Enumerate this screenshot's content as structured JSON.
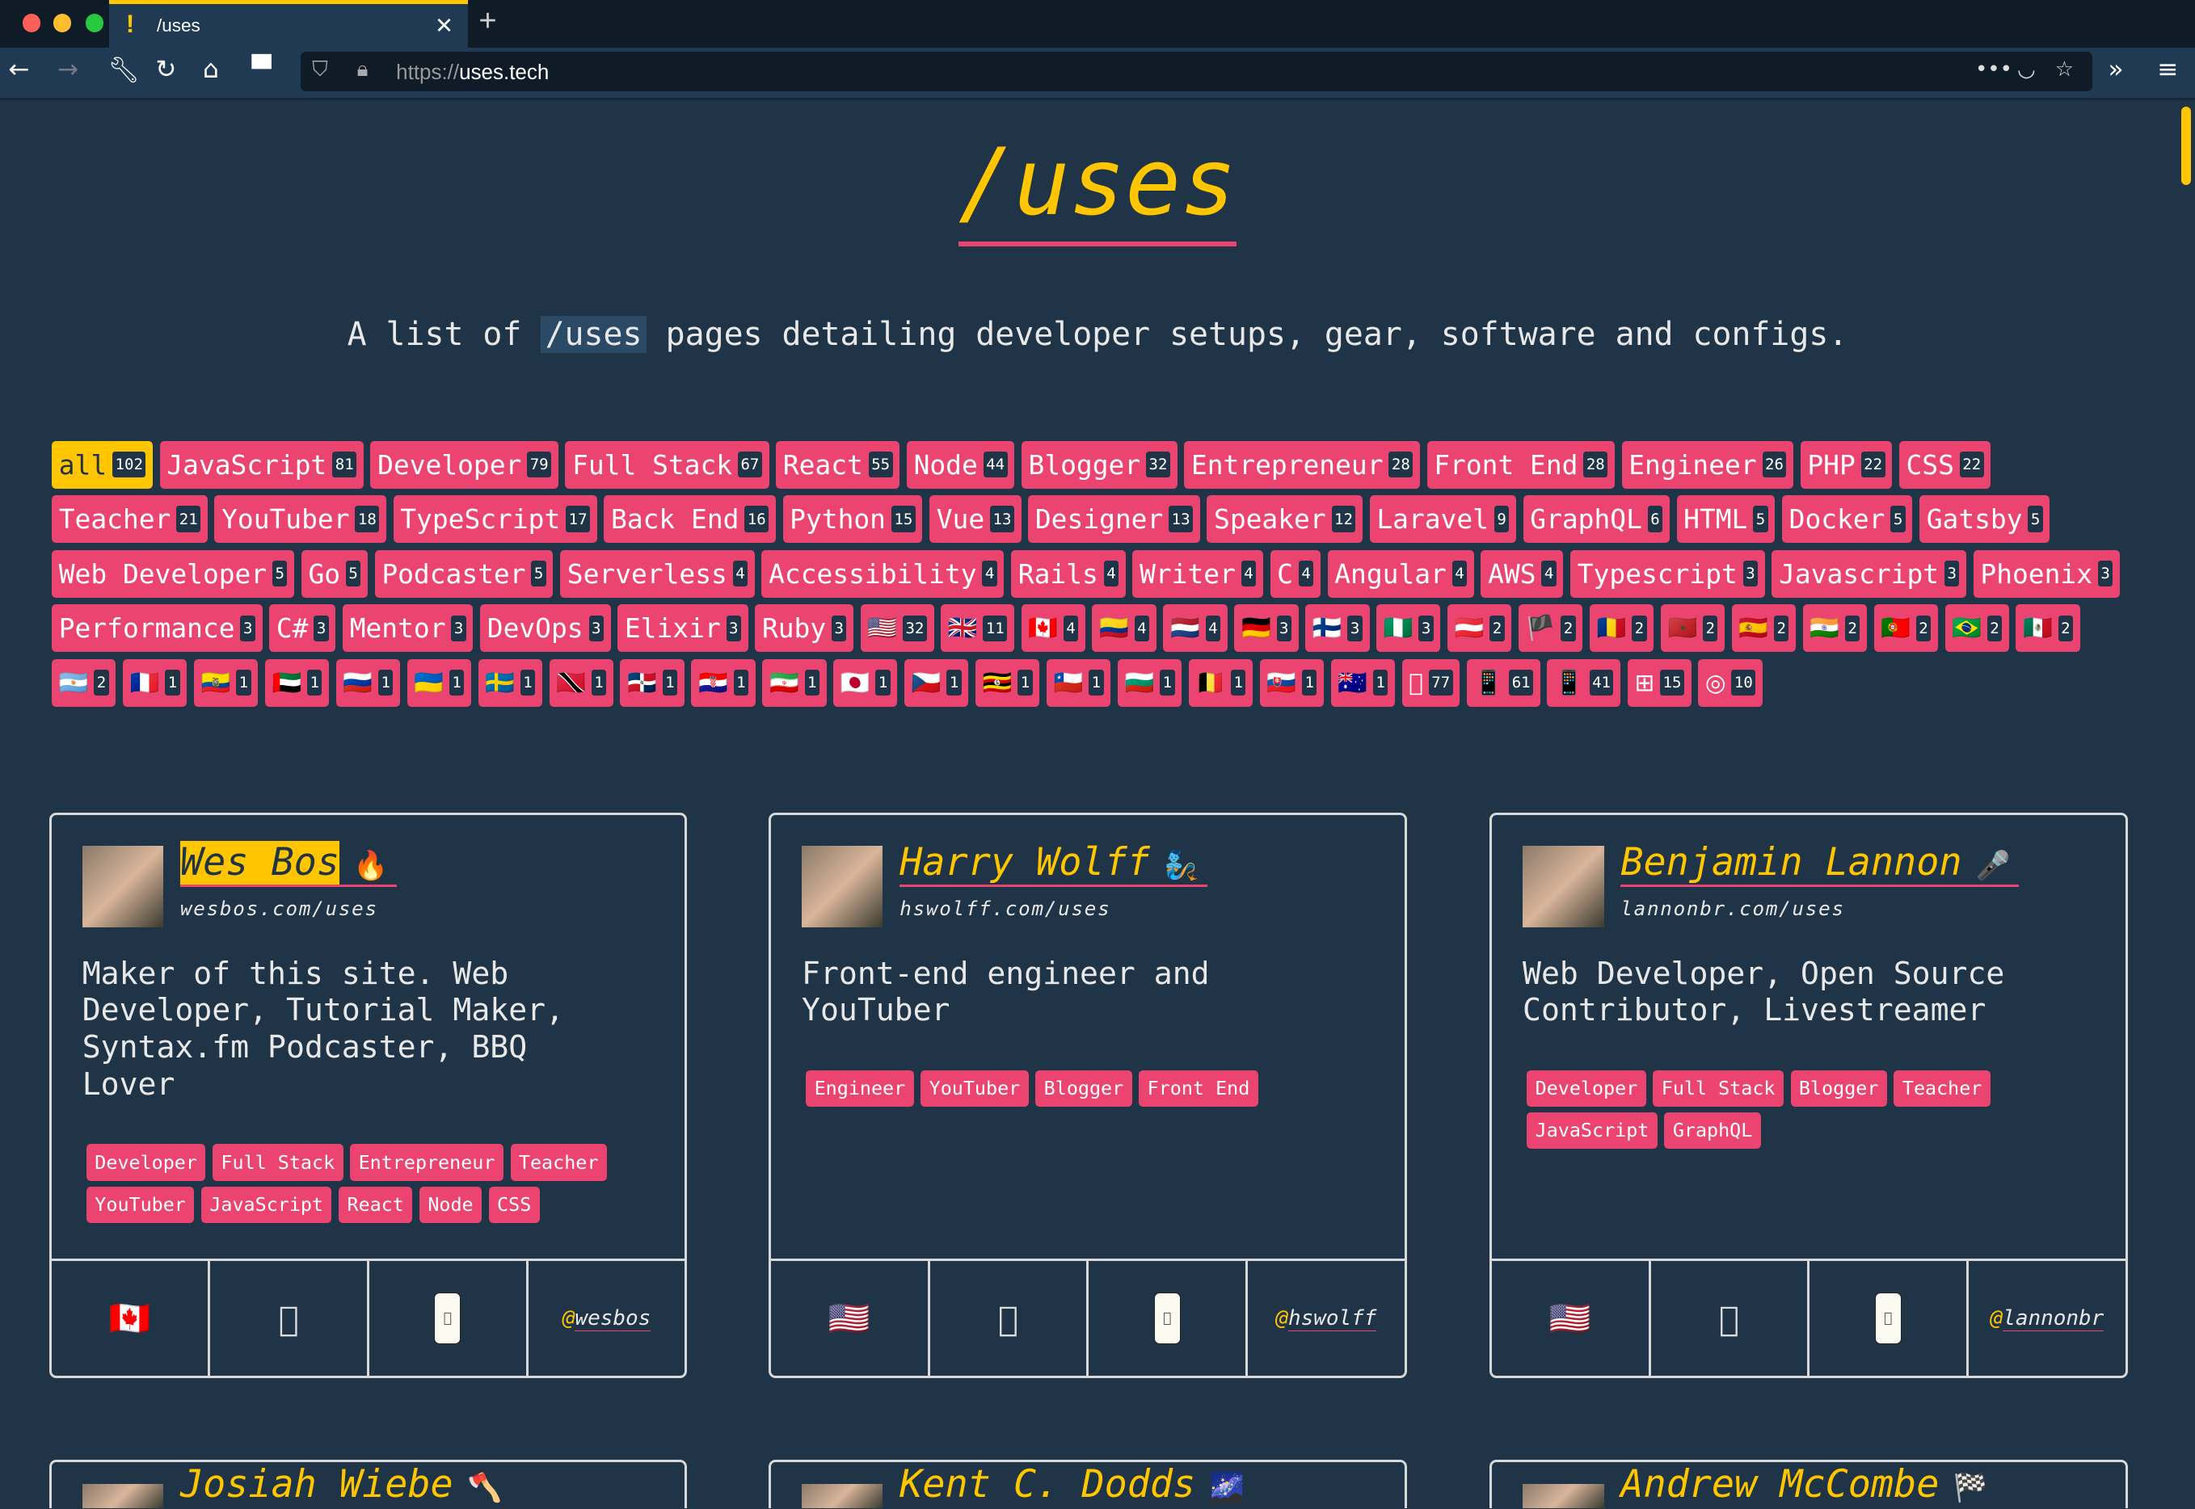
{
  "browser": {
    "tab_title": "/uses",
    "url_scheme": "https://",
    "url_host": "uses.tech"
  },
  "header": {
    "title": "/uses",
    "subtitle_pre": "A list of",
    "subtitle_code": "/uses",
    "subtitle_post": "pages detailing developer setups, gear, software and configs."
  },
  "colors": {
    "accent_yellow": "#ffc600",
    "accent_pink": "#eb4471",
    "background": "#203447"
  },
  "filters": [
    {
      "label": "all",
      "count": 102,
      "active": true
    },
    {
      "label": "JavaScript",
      "count": 81
    },
    {
      "label": "Developer",
      "count": 79
    },
    {
      "label": "Full Stack",
      "count": 67
    },
    {
      "label": "React",
      "count": 55
    },
    {
      "label": "Node",
      "count": 44
    },
    {
      "label": "Blogger",
      "count": 32
    },
    {
      "label": "Entrepreneur",
      "count": 28
    },
    {
      "label": "Front End",
      "count": 28
    },
    {
      "label": "Engineer",
      "count": 26
    },
    {
      "label": "PHP",
      "count": 22
    },
    {
      "label": "CSS",
      "count": 22
    },
    {
      "label": "Teacher",
      "count": 21
    },
    {
      "label": "YouTuber",
      "count": 18
    },
    {
      "label": "TypeScript",
      "count": 17
    },
    {
      "label": "Back End",
      "count": 16
    },
    {
      "label": "Python",
      "count": 15
    },
    {
      "label": "Vue",
      "count": 13
    },
    {
      "label": "Designer",
      "count": 13
    },
    {
      "label": "Speaker",
      "count": 12
    },
    {
      "label": "Laravel",
      "count": 9
    },
    {
      "label": "GraphQL",
      "count": 6
    },
    {
      "label": "HTML",
      "count": 5
    },
    {
      "label": "Docker",
      "count": 5
    },
    {
      "label": "Gatsby",
      "count": 5
    },
    {
      "label": "Web Developer",
      "count": 5
    },
    {
      "label": "Go",
      "count": 5
    },
    {
      "label": "Podcaster",
      "count": 5
    },
    {
      "label": "Serverless",
      "count": 4
    },
    {
      "label": "Accessibility",
      "count": 4
    },
    {
      "label": "Rails",
      "count": 4
    },
    {
      "label": "Writer",
      "count": 4
    },
    {
      "label": "C",
      "count": 4
    },
    {
      "label": "Angular",
      "count": 4
    },
    {
      "label": "AWS",
      "count": 4
    },
    {
      "label": "Typescript",
      "count": 3
    },
    {
      "label": "Javascript",
      "count": 3
    },
    {
      "label": "Phoenix",
      "count": 3
    },
    {
      "label": "Performance",
      "count": 3
    },
    {
      "label": "C#",
      "count": 3
    },
    {
      "label": "Mentor",
      "count": 3
    },
    {
      "label": "DevOps",
      "count": 3
    },
    {
      "label": "Elixir",
      "count": 3
    },
    {
      "label": "Ruby",
      "count": 3
    },
    {
      "emoji": "🇺🇸",
      "count": 32
    },
    {
      "emoji": "🇬🇧",
      "count": 11
    },
    {
      "emoji": "🇨🇦",
      "count": 4
    },
    {
      "emoji": "🇨🇴",
      "count": 4
    },
    {
      "emoji": "🇳🇱",
      "count": 4
    },
    {
      "emoji": "🇩🇪",
      "count": 3
    },
    {
      "emoji": "🇫🇮",
      "count": 3
    },
    {
      "emoji": "🇳🇬",
      "count": 3
    },
    {
      "emoji": "🇦🇹",
      "count": 2
    },
    {
      "emoji": "🏴",
      "count": 2
    },
    {
      "emoji": "🇷🇴",
      "count": 2
    },
    {
      "emoji": "🇲🇦",
      "count": 2
    },
    {
      "emoji": "🇪🇸",
      "count": 2
    },
    {
      "emoji": "🇮🇳",
      "count": 2
    },
    {
      "emoji": "🇵🇹",
      "count": 2
    },
    {
      "emoji": "🇧🇷",
      "count": 2
    },
    {
      "emoji": "🇲🇽",
      "count": 2
    },
    {
      "emoji": "🇦🇷",
      "count": 2
    },
    {
      "emoji": "🇫🇷",
      "count": 1
    },
    {
      "emoji": "🇪🇨",
      "count": 1
    },
    {
      "emoji": "🇦🇪",
      "count": 1
    },
    {
      "emoji": "🇷🇺",
      "count": 1
    },
    {
      "emoji": "🇺🇦",
      "count": 1
    },
    {
      "emoji": "🇸🇪",
      "count": 1
    },
    {
      "emoji": "🇹🇹",
      "count": 1
    },
    {
      "emoji": "🇩🇴",
      "count": 1
    },
    {
      "emoji": "🇭🇷",
      "count": 1
    },
    {
      "emoji": "🇮🇷",
      "count": 1
    },
    {
      "emoji": "🇯🇵",
      "count": 1
    },
    {
      "emoji": "🇨🇿",
      "count": 1
    },
    {
      "emoji": "🇺🇬",
      "count": 1
    },
    {
      "emoji": "🇨🇱",
      "count": 1
    },
    {
      "emoji": "🇧🇬",
      "count": 1
    },
    {
      "emoji": "🇧🇪",
      "count": 1
    },
    {
      "emoji": "🇸🇰",
      "count": 1
    },
    {
      "emoji": "🇦🇺",
      "count": 1
    },
    {
      "emoji": "",
      "count": 77
    },
    {
      "emoji": "📱",
      "count": 61
    },
    {
      "emoji": "📱",
      "count": 41
    },
    {
      "emoji": "⊞",
      "count": 15
    },
    {
      "emoji": "◎",
      "count": 10
    }
  ],
  "people": [
    {
      "name": "Wes Bos",
      "emoji": "🔥",
      "url": "wesbos.com/uses",
      "description": "Maker of this site. Web Developer, Tutorial Maker, Syntax.fm Podcaster, BBQ Lover",
      "tags": [
        "Developer",
        "Full Stack",
        "Entrepreneur",
        "Teacher",
        "YouTuber",
        "JavaScript",
        "React",
        "Node",
        "CSS"
      ],
      "country": "🇨🇦",
      "computer": "",
      "phone": "",
      "twitter": "wesbos"
    },
    {
      "name": "Harry Wolff",
      "emoji": "🧞",
      "url": "hswolff.com/uses",
      "description": "Front-end engineer and YouTuber",
      "tags": [
        "Engineer",
        "YouTuber",
        "Blogger",
        "Front End"
      ],
      "country": "🇺🇸",
      "computer": "",
      "phone": "",
      "twitter": "hswolff"
    },
    {
      "name": "Benjamin Lannon",
      "emoji": "🎤",
      "url": "lannonbr.com/uses",
      "description": "Web Developer, Open Source Contributor, Livestreamer",
      "tags": [
        "Developer",
        "Full Stack",
        "Blogger",
        "Teacher",
        "JavaScript",
        "GraphQL"
      ],
      "country": "🇺🇸",
      "computer": "",
      "phone": "",
      "twitter": "lannonbr"
    },
    {
      "name": "Josiah Wiebe",
      "emoji": "🪓"
    },
    {
      "name": "Kent C. Dodds",
      "emoji": "🌌"
    },
    {
      "name": "Andrew McCombe",
      "emoji": "🏁"
    }
  ]
}
